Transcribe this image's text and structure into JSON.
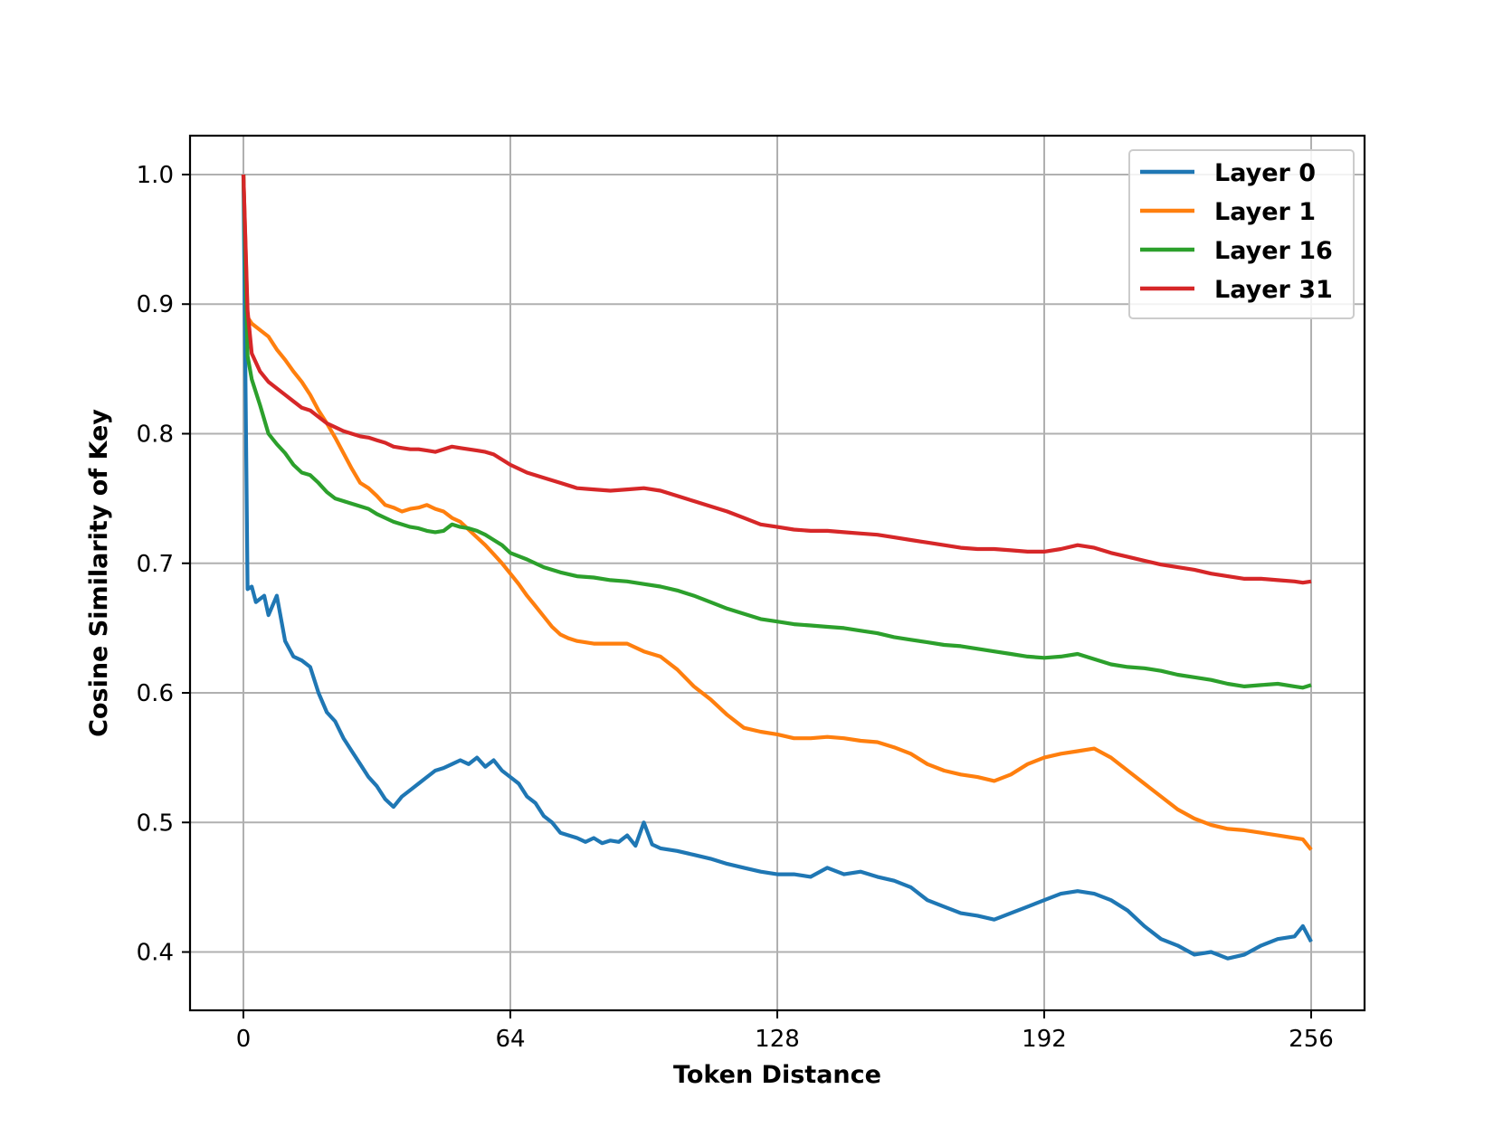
{
  "chart_data": {
    "type": "line",
    "title": "",
    "xlabel": "Token Distance",
    "ylabel": "Cosine Similarity of Key",
    "xlim": [
      -12.8,
      268.8
    ],
    "ylim": [
      0.355,
      1.03
    ],
    "xticks": [
      0,
      64,
      128,
      192,
      256
    ],
    "xtick_labels": [
      "0",
      "64",
      "128",
      "192",
      "256"
    ],
    "yticks": [
      0.4,
      0.5,
      0.6,
      0.7,
      0.8,
      0.9,
      1.0
    ],
    "ytick_labels": [
      "0.4",
      "0.5",
      "0.6",
      "0.7",
      "0.8",
      "0.9",
      "1.0"
    ],
    "grid": true,
    "legend_position": "top-right",
    "series": [
      {
        "name": "Layer 0",
        "color": "#1f77b4",
        "x": [
          0,
          1,
          2,
          3,
          5,
          6,
          8,
          10,
          12,
          14,
          16,
          18,
          20,
          22,
          24,
          26,
          28,
          30,
          32,
          34,
          36,
          38,
          40,
          42,
          44,
          46,
          48,
          50,
          52,
          54,
          56,
          58,
          60,
          62,
          64,
          66,
          68,
          70,
          72,
          74,
          76,
          78,
          80,
          82,
          84,
          86,
          88,
          90,
          92,
          94,
          96,
          98,
          100,
          104,
          108,
          112,
          116,
          120,
          124,
          128,
          132,
          136,
          140,
          144,
          148,
          152,
          156,
          160,
          164,
          168,
          172,
          176,
          180,
          184,
          188,
          192,
          196,
          200,
          204,
          208,
          212,
          216,
          220,
          224,
          228,
          232,
          236,
          240,
          244,
          248,
          252,
          254,
          256
        ],
        "y": [
          1.0,
          0.68,
          0.682,
          0.67,
          0.675,
          0.66,
          0.675,
          0.64,
          0.628,
          0.625,
          0.62,
          0.6,
          0.585,
          0.578,
          0.565,
          0.555,
          0.545,
          0.535,
          0.528,
          0.518,
          0.512,
          0.52,
          0.525,
          0.53,
          0.535,
          0.54,
          0.542,
          0.545,
          0.548,
          0.545,
          0.55,
          0.543,
          0.548,
          0.54,
          0.535,
          0.53,
          0.52,
          0.515,
          0.505,
          0.5,
          0.492,
          0.49,
          0.488,
          0.485,
          0.488,
          0.484,
          0.486,
          0.485,
          0.49,
          0.482,
          0.5,
          0.483,
          0.48,
          0.478,
          0.475,
          0.472,
          0.468,
          0.465,
          0.462,
          0.46,
          0.46,
          0.458,
          0.465,
          0.46,
          0.462,
          0.458,
          0.455,
          0.45,
          0.44,
          0.435,
          0.43,
          0.428,
          0.425,
          0.43,
          0.435,
          0.44,
          0.445,
          0.447,
          0.445,
          0.44,
          0.432,
          0.42,
          0.41,
          0.405,
          0.398,
          0.4,
          0.395,
          0.398,
          0.405,
          0.41,
          0.412,
          0.42,
          0.408
        ]
      },
      {
        "name": "Layer 1",
        "color": "#ff7f0e",
        "x": [
          0,
          1,
          2,
          4,
          6,
          8,
          10,
          12,
          14,
          16,
          18,
          20,
          22,
          24,
          26,
          28,
          30,
          32,
          34,
          36,
          38,
          40,
          42,
          44,
          46,
          48,
          50,
          52,
          54,
          56,
          58,
          60,
          62,
          64,
          66,
          68,
          70,
          72,
          74,
          76,
          78,
          80,
          84,
          88,
          92,
          96,
          100,
          104,
          108,
          112,
          116,
          120,
          124,
          128,
          132,
          136,
          140,
          144,
          148,
          152,
          156,
          160,
          164,
          168,
          172,
          176,
          180,
          184,
          188,
          192,
          196,
          200,
          204,
          208,
          212,
          216,
          220,
          224,
          228,
          232,
          236,
          240,
          244,
          248,
          252,
          254,
          256
        ],
        "y": [
          1.0,
          0.89,
          0.885,
          0.88,
          0.875,
          0.865,
          0.857,
          0.848,
          0.84,
          0.83,
          0.818,
          0.808,
          0.797,
          0.785,
          0.773,
          0.762,
          0.758,
          0.752,
          0.745,
          0.743,
          0.74,
          0.742,
          0.743,
          0.745,
          0.742,
          0.74,
          0.735,
          0.732,
          0.726,
          0.72,
          0.714,
          0.707,
          0.7,
          0.692,
          0.684,
          0.675,
          0.667,
          0.659,
          0.651,
          0.645,
          0.642,
          0.64,
          0.638,
          0.638,
          0.638,
          0.632,
          0.628,
          0.618,
          0.605,
          0.595,
          0.583,
          0.573,
          0.57,
          0.568,
          0.565,
          0.565,
          0.566,
          0.565,
          0.563,
          0.562,
          0.558,
          0.553,
          0.545,
          0.54,
          0.537,
          0.535,
          0.532,
          0.537,
          0.545,
          0.55,
          0.553,
          0.555,
          0.557,
          0.55,
          0.54,
          0.53,
          0.52,
          0.51,
          0.503,
          0.498,
          0.495,
          0.494,
          0.492,
          0.49,
          0.488,
          0.487,
          0.479
        ]
      },
      {
        "name": "Layer 16",
        "color": "#2ca02c",
        "x": [
          0,
          1,
          2,
          4,
          6,
          8,
          10,
          12,
          14,
          16,
          18,
          20,
          22,
          24,
          26,
          28,
          30,
          32,
          34,
          36,
          38,
          40,
          42,
          44,
          46,
          48,
          50,
          52,
          54,
          56,
          58,
          60,
          62,
          64,
          68,
          72,
          76,
          80,
          84,
          88,
          92,
          96,
          100,
          104,
          108,
          112,
          116,
          120,
          124,
          128,
          132,
          136,
          140,
          144,
          148,
          152,
          156,
          160,
          164,
          168,
          172,
          176,
          180,
          184,
          188,
          192,
          196,
          200,
          204,
          208,
          212,
          216,
          220,
          224,
          228,
          232,
          236,
          240,
          244,
          248,
          252,
          254,
          256
        ],
        "y": [
          1.0,
          0.86,
          0.842,
          0.822,
          0.8,
          0.792,
          0.785,
          0.776,
          0.77,
          0.768,
          0.762,
          0.755,
          0.75,
          0.748,
          0.746,
          0.744,
          0.742,
          0.738,
          0.735,
          0.732,
          0.73,
          0.728,
          0.727,
          0.725,
          0.724,
          0.725,
          0.73,
          0.728,
          0.727,
          0.725,
          0.722,
          0.718,
          0.714,
          0.708,
          0.703,
          0.697,
          0.693,
          0.69,
          0.689,
          0.687,
          0.686,
          0.684,
          0.682,
          0.679,
          0.675,
          0.67,
          0.665,
          0.661,
          0.657,
          0.655,
          0.653,
          0.652,
          0.651,
          0.65,
          0.648,
          0.646,
          0.643,
          0.641,
          0.639,
          0.637,
          0.636,
          0.634,
          0.632,
          0.63,
          0.628,
          0.627,
          0.628,
          0.63,
          0.626,
          0.622,
          0.62,
          0.619,
          0.617,
          0.614,
          0.612,
          0.61,
          0.607,
          0.605,
          0.606,
          0.607,
          0.605,
          0.604,
          0.606
        ]
      },
      {
        "name": "Layer 31",
        "color": "#d62728",
        "x": [
          0,
          1,
          2,
          4,
          6,
          8,
          10,
          12,
          14,
          16,
          18,
          20,
          22,
          24,
          26,
          28,
          30,
          32,
          34,
          36,
          38,
          40,
          42,
          44,
          46,
          48,
          50,
          52,
          54,
          56,
          58,
          60,
          62,
          64,
          68,
          72,
          76,
          80,
          84,
          88,
          92,
          96,
          100,
          104,
          108,
          112,
          116,
          120,
          124,
          128,
          132,
          136,
          140,
          144,
          148,
          152,
          156,
          160,
          164,
          168,
          172,
          176,
          180,
          184,
          188,
          192,
          196,
          200,
          204,
          208,
          212,
          216,
          220,
          224,
          228,
          232,
          236,
          240,
          244,
          248,
          252,
          254,
          256
        ],
        "y": [
          1.0,
          0.895,
          0.862,
          0.848,
          0.84,
          0.835,
          0.83,
          0.825,
          0.82,
          0.818,
          0.813,
          0.808,
          0.805,
          0.802,
          0.8,
          0.798,
          0.797,
          0.795,
          0.793,
          0.79,
          0.789,
          0.788,
          0.788,
          0.787,
          0.786,
          0.788,
          0.79,
          0.789,
          0.788,
          0.787,
          0.786,
          0.784,
          0.78,
          0.776,
          0.77,
          0.766,
          0.762,
          0.758,
          0.757,
          0.756,
          0.757,
          0.758,
          0.756,
          0.752,
          0.748,
          0.744,
          0.74,
          0.735,
          0.73,
          0.728,
          0.726,
          0.725,
          0.725,
          0.724,
          0.723,
          0.722,
          0.72,
          0.718,
          0.716,
          0.714,
          0.712,
          0.711,
          0.711,
          0.71,
          0.709,
          0.709,
          0.711,
          0.714,
          0.712,
          0.708,
          0.705,
          0.702,
          0.699,
          0.697,
          0.695,
          0.692,
          0.69,
          0.688,
          0.688,
          0.687,
          0.686,
          0.685,
          0.686
        ]
      }
    ]
  }
}
